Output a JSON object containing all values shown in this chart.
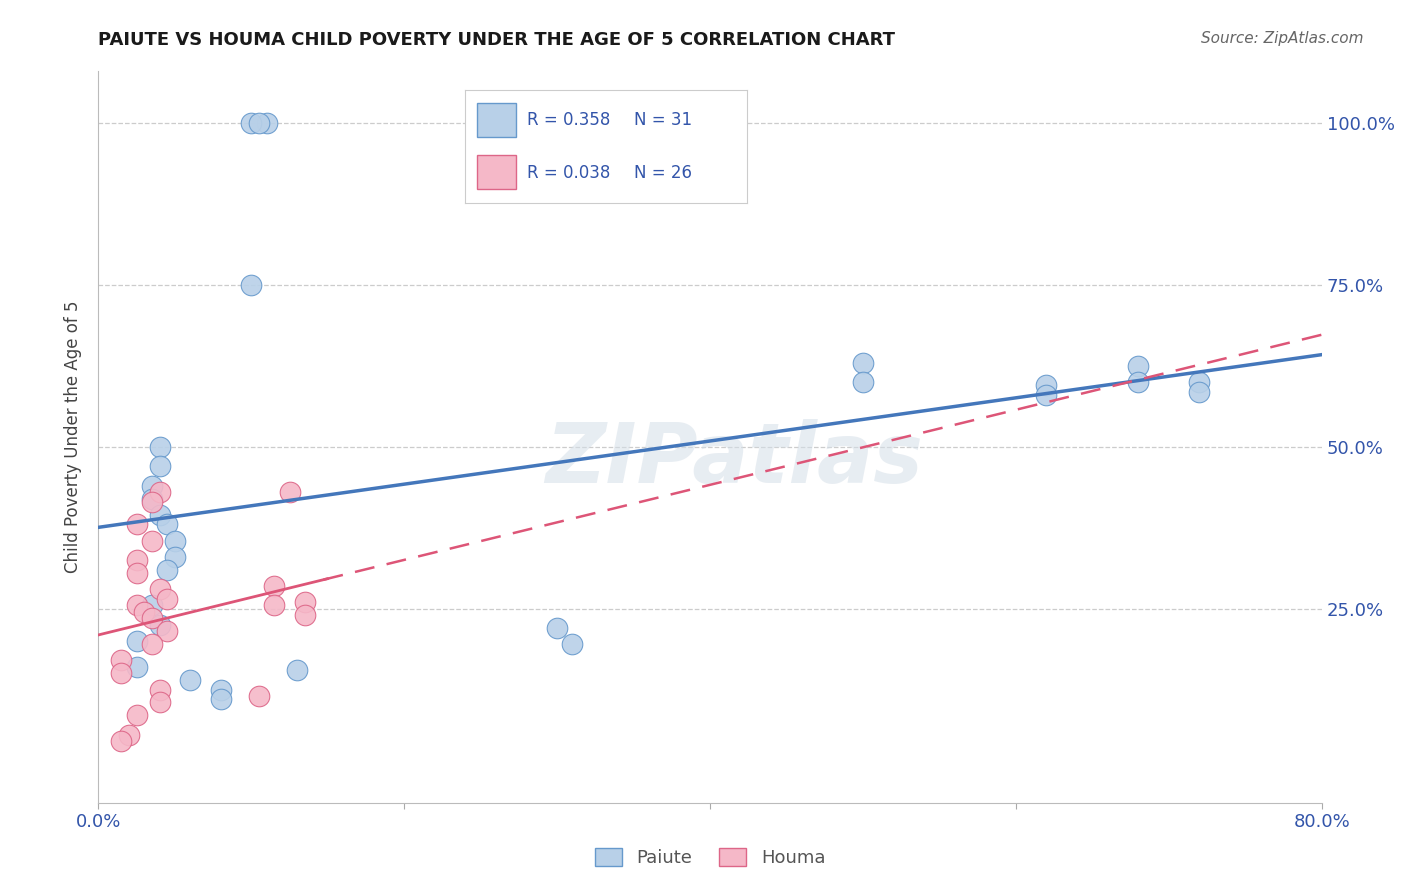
{
  "title": "PAIUTE VS HOUMA CHILD POVERTY UNDER THE AGE OF 5 CORRELATION CHART",
  "source": "Source: ZipAtlas.com",
  "ylabel": "Child Poverty Under the Age of 5",
  "paiute_R": "R = 0.358",
  "paiute_N": "N = 31",
  "houma_R": "R = 0.038",
  "houma_N": "N = 26",
  "xlim": [
    0.0,
    0.8
  ],
  "ylim": [
    -0.05,
    1.08
  ],
  "ytick_vals": [
    0.25,
    0.5,
    0.75,
    1.0
  ],
  "ytick_labels": [
    "25.0%",
    "50.0%",
    "75.0%",
    "100.0%"
  ],
  "xtick_vals": [
    0.0,
    0.2,
    0.4,
    0.6,
    0.8
  ],
  "xtick_labels": [
    "0.0%",
    "",
    "",
    "",
    "80.0%"
  ],
  "paiute_color": "#b8d0e8",
  "paiute_edge_color": "#6699cc",
  "houma_color": "#f5b8c8",
  "houma_edge_color": "#dd6688",
  "paiute_line_color": "#4477bb",
  "houma_line_color": "#dd5577",
  "watermark": "ZIPatlas",
  "legend_labels": [
    "Paiute",
    "Houma"
  ],
  "paiute_x": [
    0.1,
    0.11,
    0.04,
    0.04,
    0.035,
    0.035,
    0.04,
    0.045,
    0.05,
    0.05,
    0.045,
    0.035,
    0.04,
    0.025,
    0.025,
    0.06,
    0.08,
    0.08,
    0.13,
    0.3,
    0.31,
    0.5,
    0.5,
    0.62,
    0.62,
    0.68,
    0.68,
    0.72,
    0.72,
    0.1,
    0.105
  ],
  "paiute_y": [
    0.75,
    1.0,
    0.5,
    0.47,
    0.44,
    0.42,
    0.395,
    0.38,
    0.355,
    0.33,
    0.31,
    0.255,
    0.225,
    0.2,
    0.16,
    0.14,
    0.125,
    0.11,
    0.155,
    0.22,
    0.195,
    0.63,
    0.6,
    0.595,
    0.58,
    0.625,
    0.6,
    0.6,
    0.585,
    1.0,
    1.0
  ],
  "houma_x": [
    0.025,
    0.04,
    0.035,
    0.035,
    0.025,
    0.025,
    0.04,
    0.045,
    0.025,
    0.03,
    0.035,
    0.045,
    0.035,
    0.015,
    0.015,
    0.115,
    0.115,
    0.125,
    0.04,
    0.04,
    0.025,
    0.02,
    0.135,
    0.135,
    0.105,
    0.015
  ],
  "houma_y": [
    0.38,
    0.43,
    0.415,
    0.355,
    0.325,
    0.305,
    0.28,
    0.265,
    0.255,
    0.245,
    0.235,
    0.215,
    0.195,
    0.17,
    0.15,
    0.285,
    0.255,
    0.43,
    0.125,
    0.105,
    0.085,
    0.055,
    0.26,
    0.24,
    0.115,
    0.045
  ]
}
